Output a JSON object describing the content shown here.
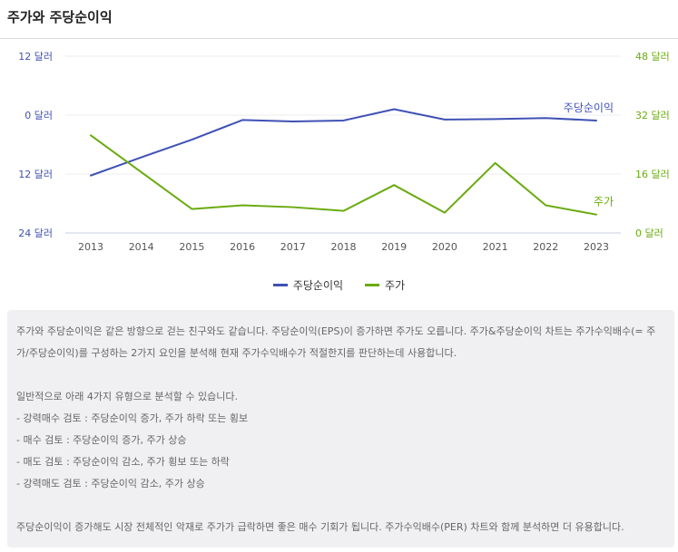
{
  "header": {
    "title": "주가와 주당순이익"
  },
  "chart_data": {
    "type": "line",
    "categories": [
      "2013",
      "2014",
      "2015",
      "2016",
      "2017",
      "2018",
      "2019",
      "2020",
      "2021",
      "2022",
      "2023"
    ],
    "series": [
      {
        "name": "주당순이익",
        "axis": "left",
        "color": "#3f51b5",
        "values": [
          -12.3,
          -8.6,
          -5.0,
          -1.0,
          -1.3,
          -1.1,
          1.2,
          -0.9,
          -0.8,
          -0.6,
          -1.1
        ]
      },
      {
        "name": "주가",
        "axis": "right",
        "color": "#6aab10",
        "values": [
          26.5,
          16.5,
          6.5,
          7.5,
          7.0,
          6.0,
          13.0,
          5.5,
          19.0,
          7.5,
          5.0
        ]
      }
    ],
    "left_axis": {
      "min": -24,
      "max": 12,
      "ticks": [
        {
          "value": 12,
          "label": "12 달러"
        },
        {
          "value": 0,
          "label": "0 달러"
        },
        {
          "value": -12,
          "label": "12 달러"
        },
        {
          "value": -24,
          "label": "24 달러"
        }
      ]
    },
    "right_axis": {
      "min": 0,
      "max": 48,
      "ticks": [
        {
          "value": 48,
          "label": "48 달러"
        },
        {
          "value": 32,
          "label": "32 달러"
        },
        {
          "value": 16,
          "label": "16 달러"
        },
        {
          "value": 0,
          "label": "0 달러"
        }
      ]
    },
    "grid": true,
    "legend": "bottom"
  },
  "legend": [
    {
      "label": "주당순이익",
      "color": "#3f51b5"
    },
    {
      "label": "주가",
      "color": "#6aab10"
    }
  ],
  "description": {
    "para1": "주가와 주당순이익은 같은 방향으로 걷는 친구와도 같습니다. 주당순이익(EPS)이 증가하면 주가도 오릅니다. 주가&주당순이익 차트는 주가수익배수(= 주가/주당순이익)를 구성하는 2가지 요인을 분석해 현재 주가수익배수가 적절한지를 판단하는데 사용합니다.",
    "intro": "일반적으로 아래 4가지 유형으로 분석할 수 있습니다.",
    "items": [
      "- 강력매수 검토 : 주당순이익 증가, 주가 하락 또는 횡보",
      "- 매수 검토 : 주당순이익 증가, 주가 상승",
      "- 매도 검토 : 주당순이익 감소, 주가 횡보 또는 하락",
      "- 강력매도 검토 : 주당순이익 감소, 주가 상승"
    ],
    "outro": "주당순이익이 증가해도 시장 전체적인 악재로 주가가 급락하면 좋은 매수 기회가 됩니다. 주가수익배수(PER) 차트와 함께 분석하면 더 유용합니다."
  }
}
